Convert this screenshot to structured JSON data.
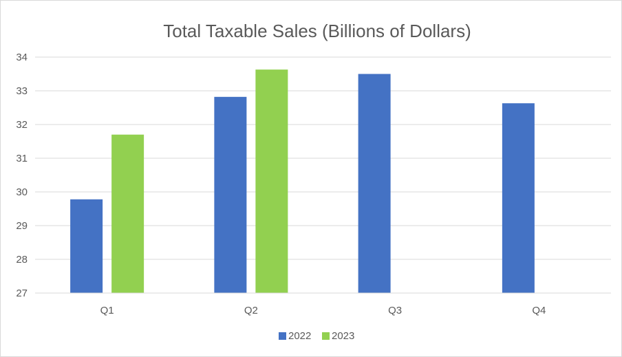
{
  "chart_data": {
    "type": "bar",
    "title": "Total Taxable Sales (Billions of Dollars)",
    "xlabel": "",
    "ylabel": "",
    "categories": [
      "Q1",
      "Q2",
      "Q3",
      "Q4"
    ],
    "series": [
      {
        "name": "2022",
        "color": "#4472c4",
        "values": [
          29.78,
          32.82,
          33.5,
          32.63
        ]
      },
      {
        "name": "2023",
        "color": "#92d050",
        "values": [
          31.7,
          33.63,
          null,
          null
        ]
      }
    ],
    "ylim": [
      27,
      34
    ],
    "yticks": [
      "27",
      "28",
      "29",
      "30",
      "31",
      "32",
      "33",
      "34"
    ],
    "grid": true,
    "gridline_color": "#d9d9d9",
    "legend_position": "bottom"
  }
}
